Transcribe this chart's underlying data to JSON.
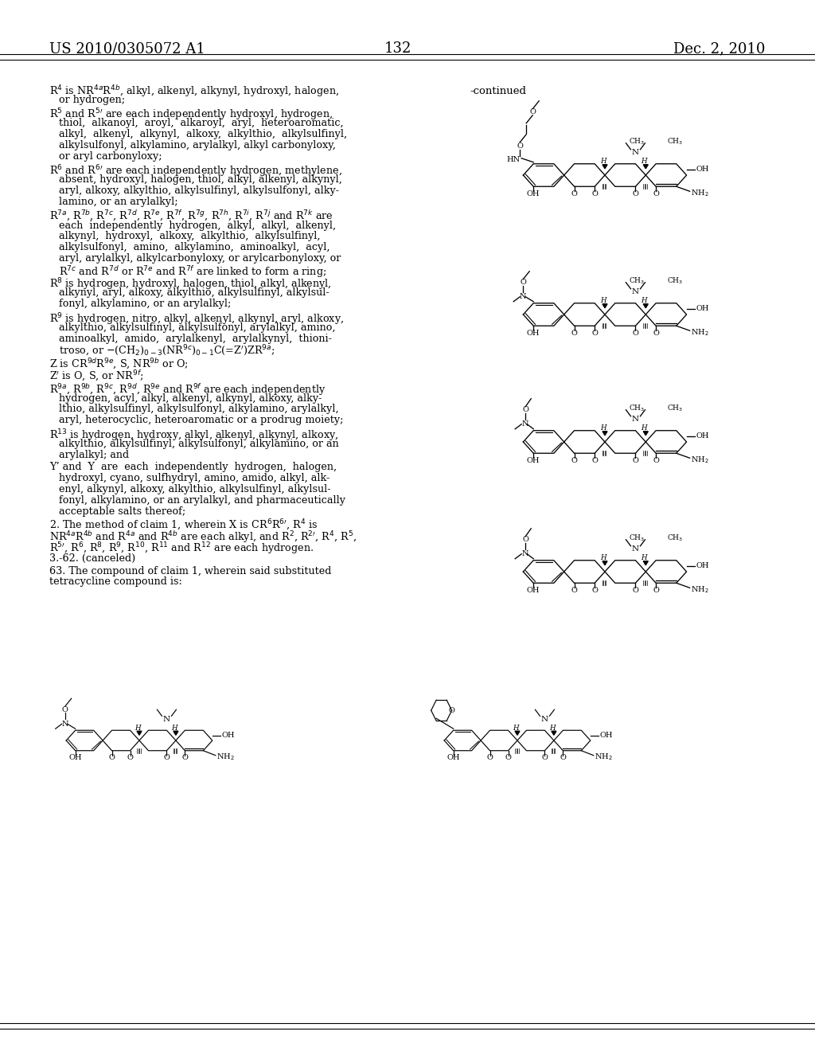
{
  "background_color": "#ffffff",
  "page_number": "132",
  "patent_left": "US 2010/0305072 A1",
  "patent_right": "Dec. 2, 2010",
  "continued_label": "-continued",
  "left_text_blocks": [
    {
      "lines": [
        "R⁴ is NR´ᵃR´ᵇ, alkyl, alkenyl, alkynyl, hydroxyl, halogen,",
        "   or hydrogen;"
      ]
    },
    {
      "lines": [
        "R⁵ and R⁵' are each independently hydroxyl, hydrogen,",
        "   thiol,  alkanoyl,  aroyl,  alkaroyl,  aryl,  heteroaromatic,",
        "   alkyl,  alkenyl,  alkynyl,  alkoxy,  alkylthio,  alkylsulfinyl,",
        "   alkylsulfonyl, alkylamino, arylalkyl, alkyl carbonyloxy,",
        "   or aryl carbonyloxy;"
      ]
    },
    {
      "lines": [
        "R⁶ and R⁶' are each independently hydrogen, methylene,",
        "   absent, hydroxyl, halogen, thiol, alkyl, alkenyl, alkynyl,",
        "   aryl, alkoxy, alkylthio, alkylsulfinyl, alkylsulfonyl, alky-",
        "   lamino, or an arylalkyl;"
      ]
    },
    {
      "lines": [
        "R⁷ᵃ, R⁷ᵇ, R⁷ᶜ, R⁷ᵈ, R⁷ᵉ, R⁷ᶠ, R⁷ᵍ, R⁷ʰ, R⁷ⁱ, R⁷ʲ and R⁷ᵏ are",
        "   each  independently  hydrogen,  alkyl,  alkyl,  alkenyl,",
        "   alkynyl,  hydroxyl,  alkoxy,  alkylthio,  alkylsulfinyl,",
        "   alkylsulfonyl,  amino,  alkylamino,  aminoalkyl,  acyl,",
        "   aryl, arylalkyl, alkylcarbonyloxy, or arylcarbonyloxy, or",
        "   R⁷ᶜ and R⁷ᵈ or R⁷ᵉ and R⁷ᶠ are linked to form a ring;"
      ]
    },
    {
      "lines": [
        "R⁸ is hydrogen, hydroxyl, halogen, thiol, alkyl, alkenyl,",
        "   alkynyl, aryl, alkoxy, alkylthio, alkylsulfinyl, alkylsul-",
        "   fonyl, alkylamino, or an arylalkyl;"
      ]
    },
    {
      "lines": [
        "R⁹ is hydrogen, nitro, alkyl, alkenyl, alkynyl, aryl, alkoxy,",
        "   alkylthio, alkylsulfinyl, alkylsulfonyl, arylalkyl, amino,",
        "   aminoalkyl,  amido,  arylalkenyl,  arylalkynyl,  thioni-",
        "   troso, or —(CH₂)₀₋₃(NR⁹ᶜ)₀₋₁C(=Z')ZR⁹ᵃ;"
      ]
    },
    {
      "lines": [
        "Z is CR⁹ᵈR⁹ᵉ, S, NR⁹ᵇ or O;"
      ]
    },
    {
      "lines": [
        "Z' is O, S, or NR⁹ᶠ;"
      ]
    },
    {
      "lines": [
        "R⁹ᵃ, R⁹ᵇ, R⁹ᶜ, R⁹ᵈ, R⁹ᵉ and R⁹ᶠ are each independently",
        "   hydrogen, acyl, alkyl, alkenyl, alkynyl, alkoxy, alky-",
        "   lthio, alkylsulfinyl, alkylsulfonyl, alkylamino, arylalkyl,",
        "   aryl, heterocyclic, heteroaromatic or a prodrug moiety;"
      ]
    },
    {
      "lines": [
        "R¹³ is hydrogen, hydroxy, alkyl, alkenyl, alkynyl, alkoxy,",
        "   alkylthio, alkylsulfinyl, alkylsulfonyl, alkylamino, or an",
        "   arylalkyl; and"
      ]
    },
    {
      "lines": [
        "Y' and  Y  are  each  independently  hydrogen,  halogen,",
        "   hydroxyl, cyano, sulfhydryl, amino, amido, alkyl, alk-",
        "   enyl, alkynyl, alkoxy, alkylthio, alkylsulfinyl, alkylsul-",
        "   fonyl, alkylamino, or an arylalkyl, and pharmaceutically",
        "   acceptable salts thereof;"
      ]
    },
    {
      "lines": [
        "2. The method of claim 1, wherein X is CR⁶R⁶, R⁴ is",
        "NR´ᵃR´ᵇ and R´ᵃ and R´ᵇ are each alkyl, and R², R²', R´, R⁵,",
        "R⁵', R⁶, R⁸, R⁹, R¹⁰, R¹¹ and R¹² are each hydrogen."
      ]
    },
    {
      "lines": [
        "3.-62. (canceled)"
      ]
    },
    {
      "lines": [
        "63. The compound of claim 1, wherein said substituted",
        "tetracycline compound is:"
      ]
    }
  ]
}
